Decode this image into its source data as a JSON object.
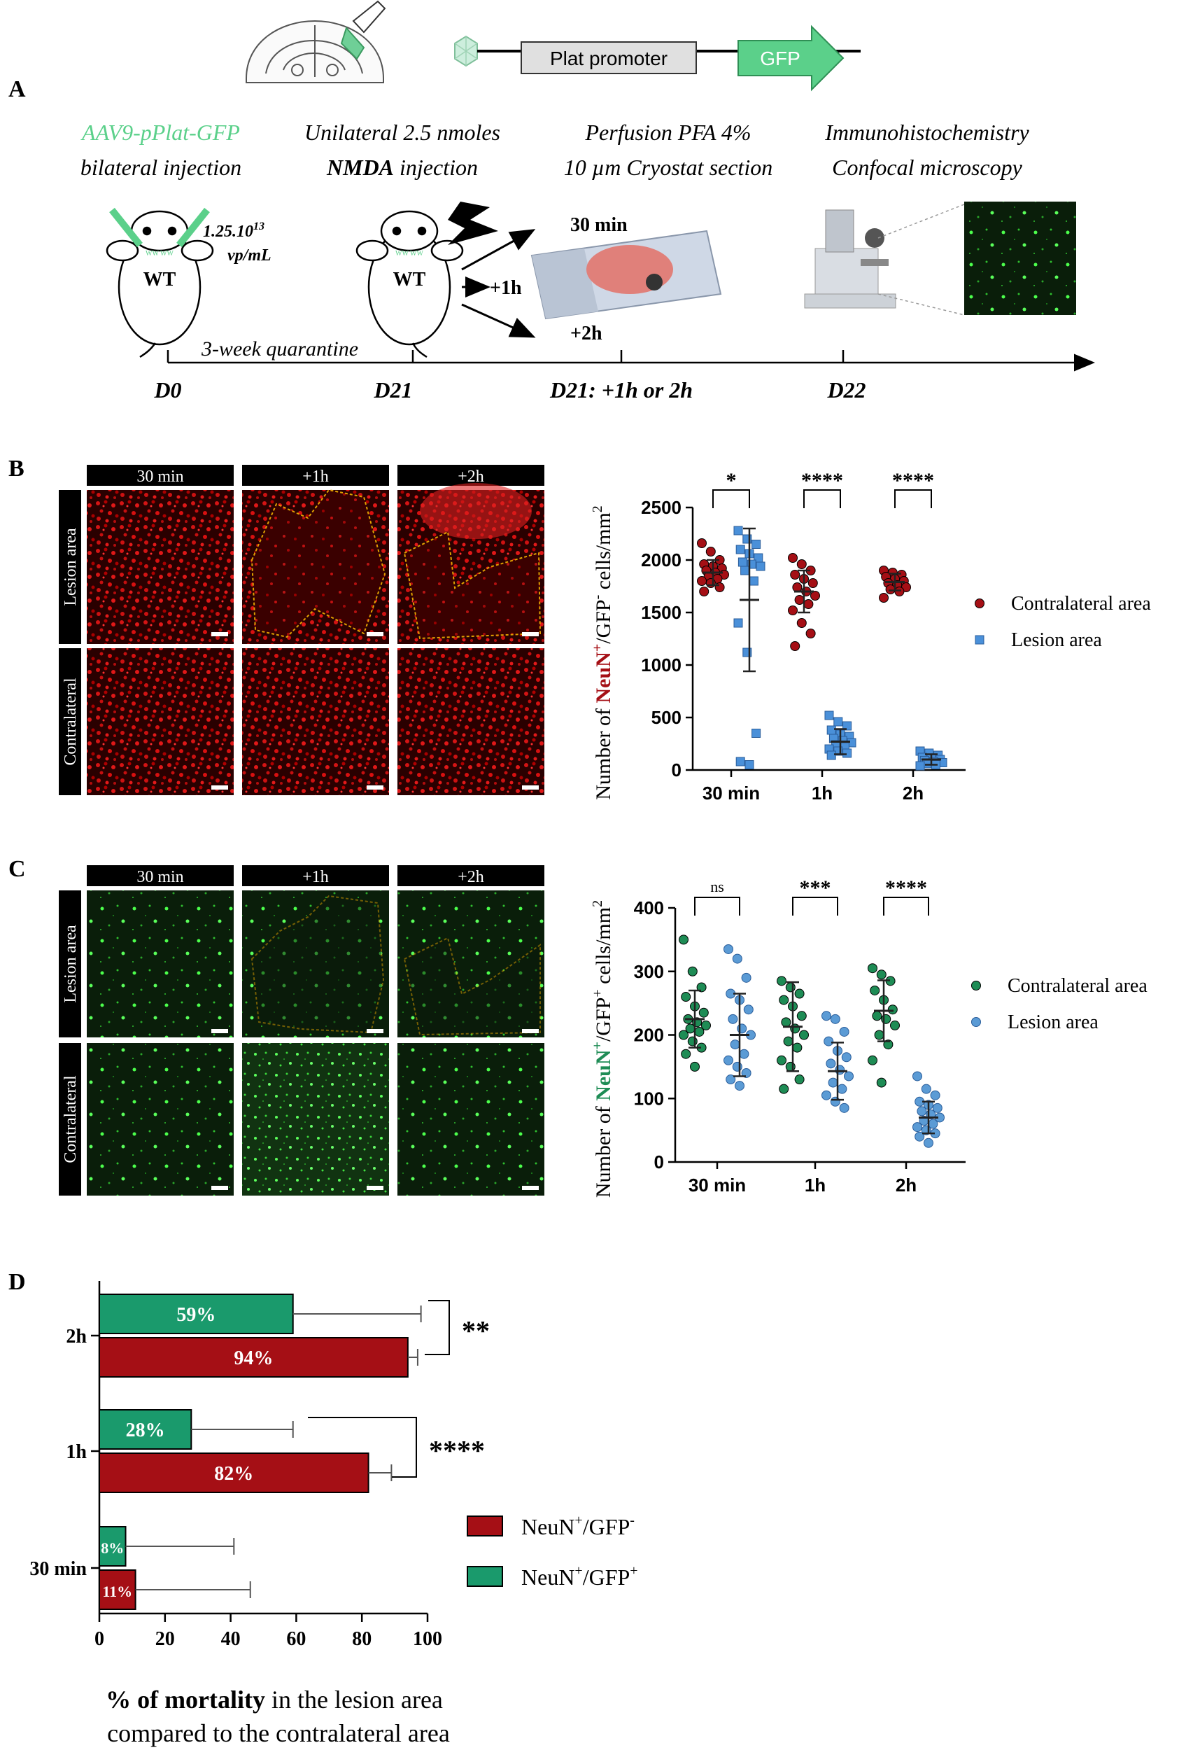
{
  "panel_a": {
    "label": "A",
    "construct": {
      "promoter": "Plat promoter",
      "reporter": "GFP"
    },
    "steps": [
      {
        "line1": "AAV9-pPlat-GFP",
        "line2": "bilateral injection"
      },
      {
        "line1": "Unilateral 2.5 nmoles",
        "line2_bold": "NMDA",
        "line2_rest": " injection"
      },
      {
        "line1": "Perfusion PFA 4%",
        "line2": "10 µm Cryostat section"
      },
      {
        "line1": "Immunohistochemistry",
        "line2": "Confocal microscopy"
      }
    ],
    "mouse_label": "WT",
    "dose_line1": "1.25.10",
    "dose_exp": "13",
    "dose_line2": "vp/mL",
    "quarantine": "3-week quarantine",
    "arrow_labels": {
      "top": "30 min",
      "mid": "+1h",
      "bottom": "+2h"
    },
    "timeline": [
      "D0",
      "D21",
      "D21: +1h or 2h",
      "D22"
    ]
  },
  "image_panels": {
    "columns": [
      "30 min",
      "+1h",
      "+2h"
    ],
    "rows": [
      "Lesion area",
      "Contralateral"
    ]
  },
  "chart_data": [
    {
      "id": "B",
      "type": "scatter",
      "panel_label": "B",
      "ylabel_prefix": "Number of ",
      "ylabel_marker": "NeuN",
      "ylabel_sup1": "+",
      "ylabel_mid": "/GFP",
      "ylabel_sup2": "-",
      "ylabel_suffix": " cells/mm",
      "ylabel_sup3": "2",
      "categories": [
        "30 min",
        "1h",
        "2h"
      ],
      "ylim": [
        0,
        2500
      ],
      "yticks": [
        0,
        500,
        1000,
        1500,
        2000,
        2500
      ],
      "significance": [
        "*",
        "****",
        "****"
      ],
      "series": [
        {
          "name": "Contralateral area",
          "color": "#a50f15",
          "means": [
            1880,
            1700,
            1790
          ],
          "sd": [
            120,
            200,
            80
          ],
          "points": [
            [
              2160,
              2080,
              2000,
              1960,
              1940,
              1920,
              1900,
              1880,
              1860,
              1840,
              1820,
              1800,
              1780,
              1740,
              1700
            ],
            [
              2020,
              1960,
              1900,
              1860,
              1820,
              1780,
              1740,
              1700,
              1660,
              1620,
              1580,
              1520,
              1400,
              1300,
              1180
            ],
            [
              1900,
              1880,
              1860,
              1840,
              1820,
              1800,
              1780,
              1760,
              1740,
              1720,
              1700,
              1640
            ]
          ]
        },
        {
          "name": "Lesion area",
          "color": "#4a90d9",
          "means": [
            1620,
            270,
            100
          ],
          "sd": [
            680,
            120,
            50
          ],
          "points": [
            [
              2280,
              2200,
              2150,
              2100,
              2060,
              2020,
              1980,
              1960,
              1940,
              1900,
              1800,
              1400,
              1120,
              350,
              80,
              50
            ],
            [
              520,
              460,
              420,
              380,
              340,
              320,
              300,
              280,
              260,
              240,
              220,
              200,
              180,
              160,
              140
            ],
            [
              180,
              160,
              140,
              120,
              110,
              100,
              90,
              80,
              70,
              60,
              50,
              40
            ]
          ]
        }
      ]
    },
    {
      "id": "C",
      "type": "scatter",
      "panel_label": "C",
      "ylabel_prefix": "Number of ",
      "ylabel_marker": "NeuN",
      "ylabel_sup1": "+",
      "ylabel_mid": "/GFP",
      "ylabel_sup2": "+",
      "ylabel_suffix": " cells/mm",
      "ylabel_sup3": "2",
      "categories": [
        "30 min",
        "1h",
        "2h"
      ],
      "ylim": [
        0,
        400
      ],
      "yticks": [
        0,
        100,
        200,
        300,
        400
      ],
      "significance": [
        "ns",
        "***",
        "****"
      ],
      "series": [
        {
          "name": "Contralateral area",
          "color": "#1e8c55",
          "means": [
            225,
            213,
            238
          ],
          "sd": [
            45,
            70,
            48
          ],
          "points": [
            [
              350,
              300,
              275,
              260,
              245,
              235,
              225,
              220,
              215,
              210,
              205,
              200,
              190,
              180,
              170,
              150
            ],
            [
              285,
              275,
              265,
              255,
              245,
              230,
              220,
              210,
              200,
              190,
              180,
              160,
              150,
              130,
              115
            ],
            [
              305,
              295,
              285,
              270,
              255,
              240,
              230,
              225,
              215,
              200,
              185,
              160,
              125
            ]
          ]
        },
        {
          "name": "Lesion area",
          "color": "#5b9bd5",
          "means": [
            200,
            143,
            70
          ],
          "sd": [
            65,
            45,
            25
          ],
          "points": [
            [
              335,
              320,
              290,
              265,
              255,
              240,
              225,
              210,
              200,
              185,
              170,
              160,
              150,
              140,
              130,
              120
            ],
            [
              230,
              225,
              205,
              190,
              175,
              165,
              155,
              145,
              135,
              125,
              115,
              105,
              95,
              85
            ],
            [
              135,
              115,
              105,
              95,
              90,
              85,
              80,
              75,
              70,
              65,
              60,
              55,
              50,
              45,
              40,
              30
            ]
          ]
        }
      ]
    },
    {
      "id": "D",
      "type": "bar",
      "orientation": "horizontal",
      "panel_label": "D",
      "categories": [
        "2h",
        "1h",
        "30 min"
      ],
      "xlim": [
        0,
        100
      ],
      "xticks": [
        0,
        20,
        40,
        60,
        80,
        100
      ],
      "xlabel_bold": "% of mortality",
      "xlabel_rest": " in the lesion area",
      "xlabel_line2": "compared to the contralateral area",
      "significance": [
        "**",
        "****",
        ""
      ],
      "series": [
        {
          "name": "NeuN⁺/GFP⁺",
          "legend_main": "NeuN",
          "legend_sup1": "+",
          "legend_mid": "/GFP",
          "legend_sup2": "+",
          "color": "#1a9a6c",
          "values": [
            59,
            28,
            8
          ],
          "errors": [
            98,
            59,
            41
          ],
          "labels": [
            "59%",
            "28%",
            "8%"
          ]
        },
        {
          "name": "NeuN⁺/GFP⁻",
          "legend_main": "NeuN",
          "legend_sup1": "+",
          "legend_mid": "/GFP",
          "legend_sup2": "-",
          "color": "#a50f15",
          "values": [
            94,
            82,
            11
          ],
          "errors": [
            97,
            89,
            46
          ],
          "labels": [
            "94%",
            "82%",
            "11%"
          ]
        }
      ]
    }
  ]
}
